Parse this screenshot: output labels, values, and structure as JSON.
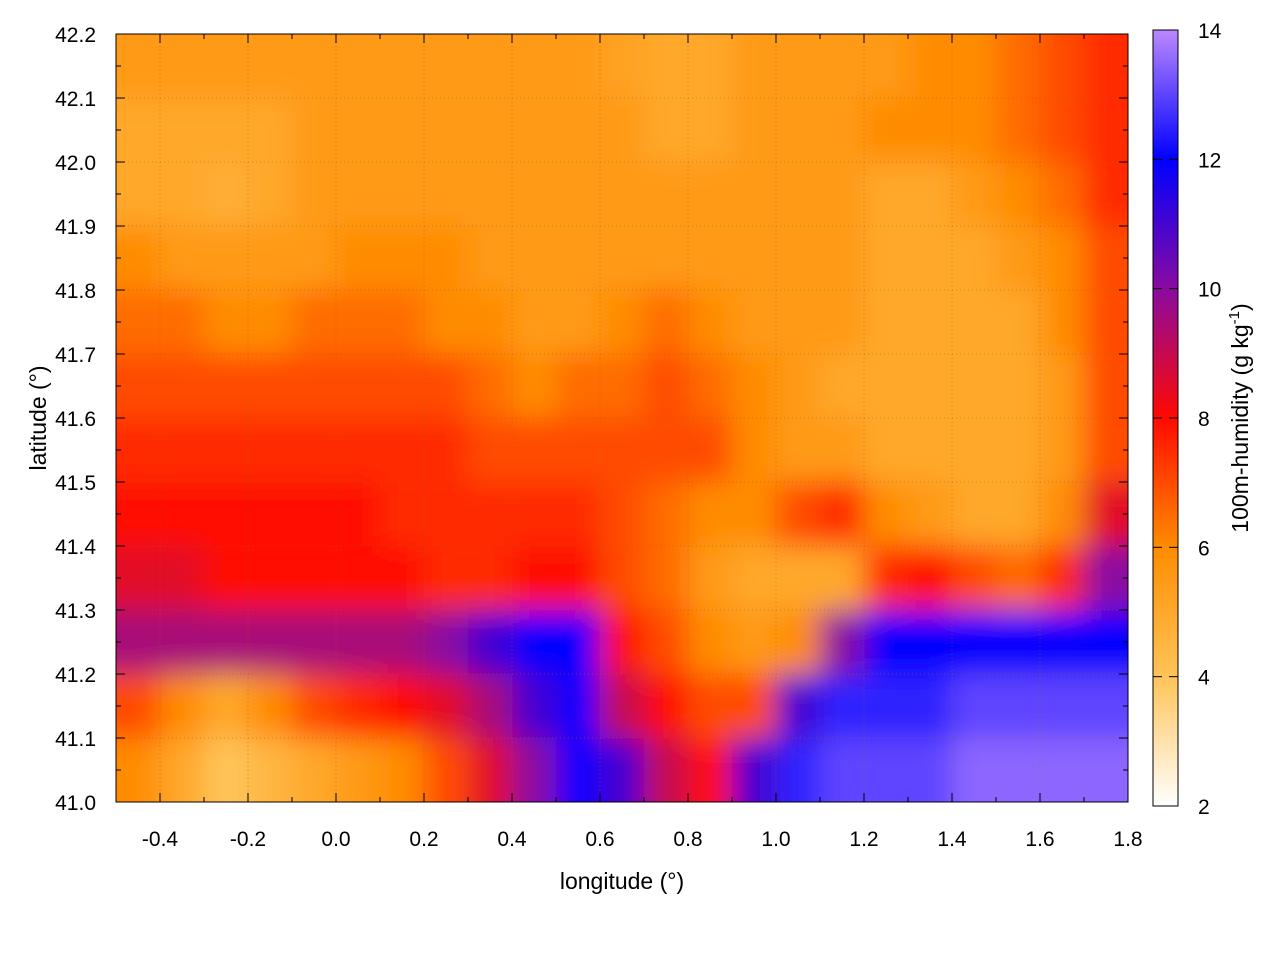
{
  "chart_data": {
    "type": "heatmap",
    "title": "",
    "xlabel": "longitude (°)",
    "ylabel": "latitude (°)",
    "colorbar_label": "100m-humidity (g kg",
    "colorbar_label_sup": "-1",
    "colorbar_label_end": ")",
    "xlim": [
      -0.5,
      1.8
    ],
    "ylim": [
      41.0,
      42.2
    ],
    "clim": [
      2,
      14
    ],
    "x_ticks": [
      "-0.4",
      "-0.2",
      "0.0",
      "0.2",
      "0.4",
      "0.6",
      "0.8",
      "1.0",
      "1.2",
      "1.4",
      "1.6",
      "1.8"
    ],
    "y_ticks": [
      "41.0",
      "41.1",
      "41.2",
      "41.3",
      "41.4",
      "41.5",
      "41.6",
      "41.7",
      "41.8",
      "41.9",
      "42.0",
      "42.1",
      "42.2"
    ],
    "colorbar_ticks": [
      "2",
      "4",
      "6",
      "8",
      "10",
      "12",
      "14"
    ],
    "grid": true,
    "colormap": [
      [
        2,
        "#ffffff"
      ],
      [
        4,
        "#ffc458"
      ],
      [
        6,
        "#ff8c00"
      ],
      [
        8,
        "#ff0a00"
      ],
      [
        10,
        "#8a0aa0"
      ],
      [
        12,
        "#0000ff"
      ],
      [
        14,
        "#bb88ff"
      ]
    ],
    "x_centers": [
      -0.45,
      -0.35,
      -0.25,
      -0.15,
      -0.05,
      0.05,
      0.15,
      0.25,
      0.35,
      0.45,
      0.55,
      0.65,
      0.75,
      0.85,
      0.95,
      1.05,
      1.15,
      1.25,
      1.35,
      1.45,
      1.55,
      1.65,
      1.75
    ],
    "y_centers": [
      42.15,
      42.05,
      41.95,
      41.85,
      41.75,
      41.65,
      41.55,
      41.45,
      41.35,
      41.25,
      41.15,
      41.05
    ],
    "values": [
      [
        5.5,
        5.5,
        5.5,
        5.5,
        5.5,
        5.5,
        5.5,
        5.5,
        5.5,
        5.5,
        5.5,
        5.2,
        5,
        5,
        5.5,
        5.5,
        5.5,
        5.5,
        6,
        6,
        6.5,
        7,
        7.5
      ],
      [
        5,
        5,
        5,
        5,
        5.5,
        5.5,
        5.5,
        5.5,
        5.5,
        5.5,
        5.5,
        5.5,
        5,
        5,
        5.5,
        5.5,
        5.5,
        6,
        6,
        6,
        6.5,
        7,
        7.5
      ],
      [
        5,
        5,
        4.8,
        5,
        5.5,
        5.5,
        5.5,
        5.5,
        5.5,
        5.5,
        5.5,
        5.5,
        5.5,
        5.5,
        5.5,
        5.5,
        5.5,
        5,
        5,
        5.5,
        6,
        6.5,
        7.5
      ],
      [
        6,
        5.5,
        5.5,
        5.5,
        5.5,
        6,
        6,
        6,
        5.5,
        5.5,
        5.5,
        5.5,
        5.5,
        5.5,
        5.5,
        5.5,
        5.5,
        5,
        5,
        5,
        5.5,
        6,
        7
      ],
      [
        6.5,
        6.5,
        6,
        6,
        6.5,
        6.5,
        6.5,
        6,
        6,
        5.5,
        5.5,
        6,
        6.5,
        6,
        5.5,
        5.5,
        5.5,
        5,
        5,
        5,
        5,
        6,
        7
      ],
      [
        7,
        7,
        7,
        7,
        7,
        7,
        7,
        7,
        6.5,
        6,
        6.5,
        6.5,
        7,
        6.5,
        6,
        5.5,
        5,
        5,
        5,
        5,
        5,
        5.5,
        7
      ],
      [
        7.5,
        7.5,
        7.5,
        7.5,
        7.5,
        7.5,
        7.5,
        7.5,
        7,
        7,
        7,
        7,
        7,
        7,
        6,
        5.5,
        5.5,
        5,
        5,
        5,
        5,
        5.5,
        7
      ],
      [
        8,
        8,
        8,
        8,
        8,
        8,
        7.5,
        7.5,
        7.5,
        7.5,
        7.5,
        7,
        6.5,
        6,
        6,
        7,
        7.5,
        6,
        5.5,
        5,
        5,
        6,
        8.5
      ],
      [
        8.5,
        8.5,
        8,
        8,
        8,
        8,
        8,
        7.5,
        7.5,
        8,
        8,
        7,
        6.5,
        5.5,
        5,
        5,
        5,
        7.5,
        8,
        7,
        6.5,
        7.5,
        10
      ],
      [
        9.5,
        9.5,
        9.5,
        9.5,
        9.5,
        9.5,
        9.5,
        10,
        11,
        12,
        12,
        8,
        7,
        6,
        5.5,
        6,
        10,
        12,
        12,
        12,
        12,
        12,
        12
      ],
      [
        7,
        6,
        5,
        6,
        7,
        7.5,
        8,
        8.5,
        9.5,
        11,
        12,
        9,
        8,
        7,
        7,
        11,
        12.5,
        12.5,
        12.5,
        13,
        13,
        13,
        13
      ],
      [
        6,
        5,
        4,
        4.5,
        5,
        5.5,
        6,
        7,
        8.5,
        10,
        12,
        11,
        9,
        8,
        11,
        12.5,
        13,
        13,
        13,
        13.5,
        13.5,
        13.5,
        13.5
      ]
    ]
  }
}
